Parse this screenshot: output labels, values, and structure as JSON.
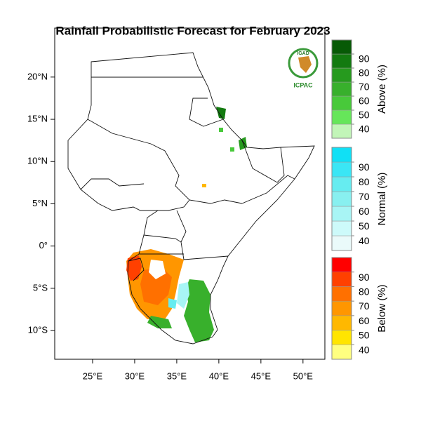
{
  "chart_data": {
    "type": "map",
    "title": "Rainfall Probabilistic Forecast for February 2023",
    "xlim": [
      20.5,
      52.6
    ],
    "ylim": [
      -13.4,
      25.8
    ],
    "xticks": [
      {
        "value": 25,
        "label": "25°E"
      },
      {
        "value": 30,
        "label": "30°E"
      },
      {
        "value": 35,
        "label": "35°E"
      },
      {
        "value": 40,
        "label": "40°E"
      },
      {
        "value": 45,
        "label": "45°E"
      },
      {
        "value": 50,
        "label": "50°E"
      }
    ],
    "yticks": [
      {
        "value": 20,
        "label": "20°N"
      },
      {
        "value": 15,
        "label": "15°N"
      },
      {
        "value": 10,
        "label": "10°N"
      },
      {
        "value": 5,
        "label": "5°N"
      },
      {
        "value": 0,
        "label": "0°"
      },
      {
        "value": -5,
        "label": "5°S"
      },
      {
        "value": -10,
        "label": "10°S"
      }
    ],
    "logo": {
      "top": "IGAD",
      "bottom": "ICPAC"
    },
    "colorbars": [
      {
        "name": "Above (%)",
        "lim": [
          30,
          100
        ],
        "ticks": [
          40,
          50,
          60,
          70,
          80,
          90
        ],
        "colors": [
          "#c2f5b8",
          "#66e65a",
          "#48c93a",
          "#38b02c",
          "#269a1e",
          "#137a10",
          "#075a06"
        ]
      },
      {
        "name": "Normal (%)",
        "lim": [
          30,
          100
        ],
        "ticks": [
          40,
          50,
          60,
          70,
          80,
          90
        ],
        "colors": [
          "#eafafa",
          "#cdfafa",
          "#a8f5f5",
          "#88f0f0",
          "#66ecf0",
          "#3ae6f5",
          "#10e0f5"
        ]
      },
      {
        "name": "Below (%)",
        "lim": [
          30,
          100
        ],
        "ticks": [
          40,
          50,
          60,
          70,
          80,
          90
        ],
        "colors": [
          "#ffff80",
          "#ffe500",
          "#ffb800",
          "#ff9600",
          "#ff7000",
          "#ff4000",
          "#ff0000"
        ]
      }
    ]
  }
}
